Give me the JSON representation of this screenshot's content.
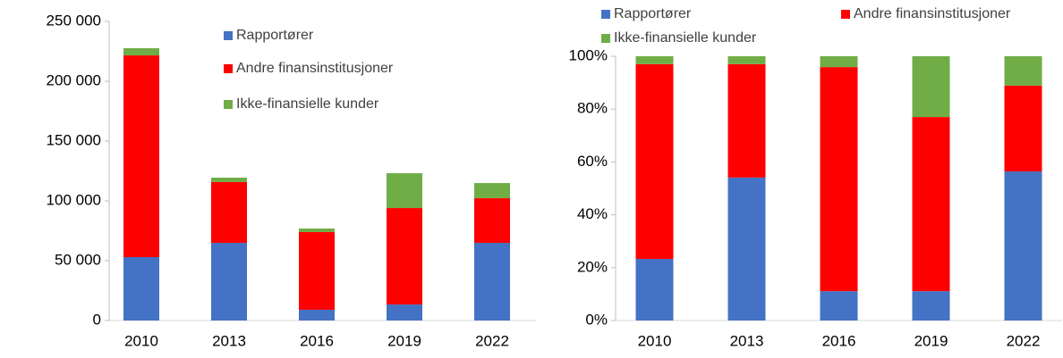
{
  "chart_data": [
    {
      "type": "stacked_bar",
      "categories": [
        "2010",
        "2013",
        "2016",
        "2019",
        "2022"
      ],
      "series": [
        {
          "name": "Rapportører",
          "color": "#4472c4",
          "values": [
            53000,
            64900,
            9000,
            13400,
            64900
          ]
        },
        {
          "name": "Andre finansinstitusjoner",
          "color": "#ff0000",
          "values": [
            168600,
            50800,
            64900,
            80600,
            37300
          ]
        },
        {
          "name": "Ikke-finansielle kunder",
          "color": "#70ad47",
          "values": [
            6000,
            3700,
            3000,
            29100,
            12700
          ]
        }
      ],
      "ylim": [
        0,
        250000
      ],
      "yticks": [
        0,
        {
          "value": 50000,
          "label": "50 000"
        },
        {
          "value": 100000,
          "label": "100 000"
        },
        {
          "value": 150000,
          "label": "150 000"
        },
        {
          "value": 200000,
          "label": "200 000"
        },
        {
          "value": 250000,
          "label": "250 000"
        }
      ]
    },
    {
      "type": "stacked_bar",
      "categories": [
        "2010",
        "2013",
        "2016",
        "2019",
        "2022"
      ],
      "series": [
        {
          "name": "Rapportører",
          "color": "#4472c4",
          "values": [
            23.3,
            54.1,
            11.1,
            11.1,
            56.4
          ]
        },
        {
          "name": "Andre finansinstitusjoner",
          "color": "#ff0000",
          "values": [
            73.7,
            42.9,
            84.8,
            65.9,
            32.5
          ]
        },
        {
          "name": "Ikke-finansielle kunder",
          "color": "#70ad47",
          "values": [
            3,
            3,
            4.1,
            23,
            11.1
          ]
        }
      ],
      "ylim": [
        0,
        100
      ],
      "yticks": [
        {
          "value": 0,
          "label": "0%"
        },
        {
          "value": 20,
          "label": "20%"
        },
        {
          "value": 40,
          "label": "40%"
        },
        {
          "value": 60,
          "label": "60%"
        },
        {
          "value": 80,
          "label": "80%"
        },
        {
          "value": 100,
          "label": "100%"
        }
      ]
    }
  ]
}
